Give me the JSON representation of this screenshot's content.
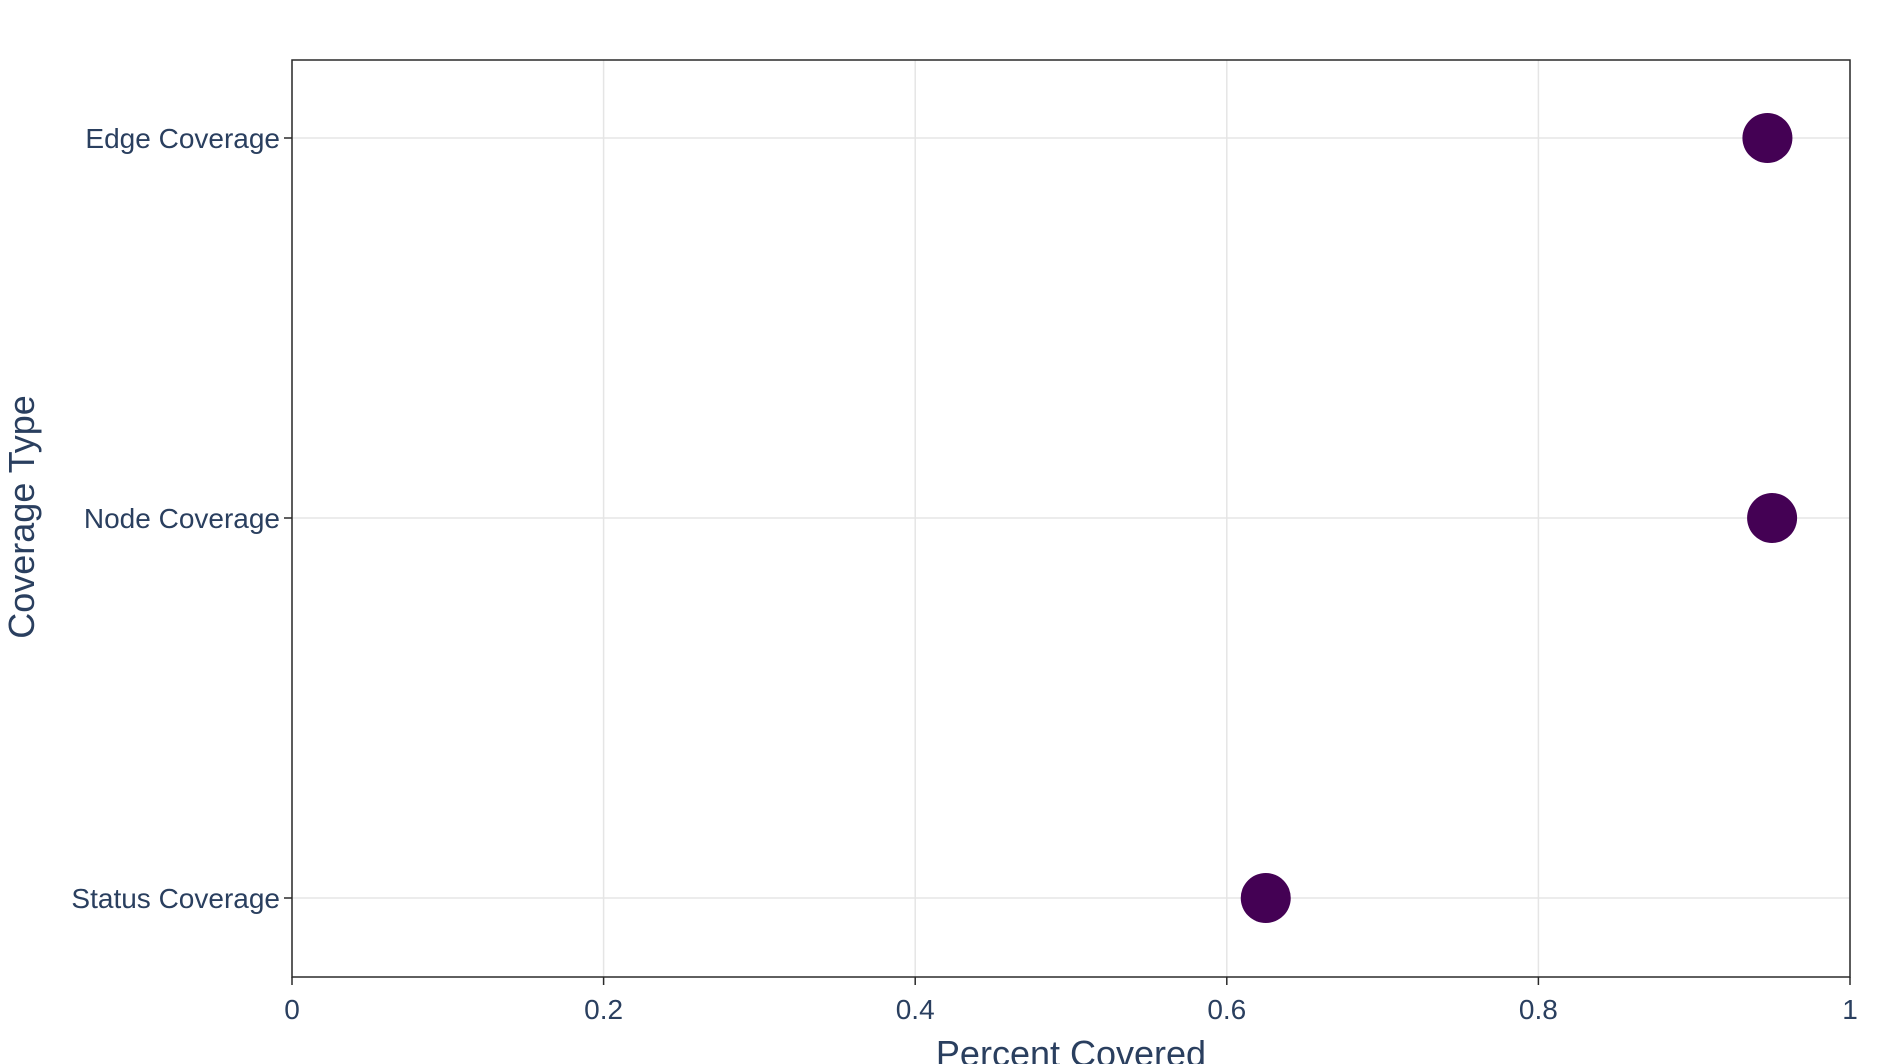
{
  "chart_data": {
    "type": "scatter",
    "title": "",
    "xlabel": "Percent Covered",
    "ylabel": "Coverage Type",
    "xlim": [
      0,
      1
    ],
    "x_ticks": [
      0,
      0.2,
      0.4,
      0.6,
      0.8,
      1
    ],
    "x_tick_labels": [
      "0",
      "0.2",
      "0.4",
      "0.6",
      "0.8",
      "1"
    ],
    "categories": [
      "Edge Coverage",
      "Node Coverage",
      "Status Coverage"
    ],
    "points": [
      {
        "category": "Edge Coverage",
        "x": 0.947
      },
      {
        "category": "Node Coverage",
        "x": 0.95
      },
      {
        "category": "Status Coverage",
        "x": 0.625
      }
    ],
    "grid": true,
    "legend": "none",
    "marker_color": "#440154",
    "gridline_color": "#e5e5e5",
    "text_color": "#2a3f5f"
  }
}
